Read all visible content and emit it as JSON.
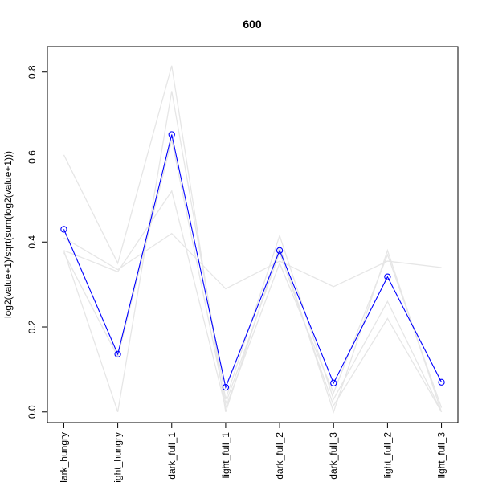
{
  "chart_data": {
    "type": "line",
    "title": "600",
    "xlabel": "",
    "ylabel": "log2(value+1)/sqrt(sum(log2(value+1)))",
    "categories": [
      "dark_hungry",
      "light_hungry",
      "dark_full_1",
      "light_full_1",
      "dark_full_2",
      "dark_full_3",
      "light_full_2",
      "light_full_3"
    ],
    "yticks": [
      "0.0",
      "0.2",
      "0.4",
      "0.6",
      "0.8"
    ],
    "ylim": [
      -0.025,
      0.86
    ],
    "grid": false,
    "highlight_color": "#0000ff",
    "background_color": "#e6e6e6",
    "highlight": {
      "values": [
        0.43,
        0.136,
        0.653,
        0.058,
        0.38,
        0.068,
        0.318,
        0.07
      ]
    },
    "background_series": [
      {
        "values": [
          0.605,
          0.35,
          0.815,
          0.0,
          0.39,
          0.0,
          0.38,
          0.0
        ]
      },
      {
        "values": [
          0.38,
          0.0,
          0.755,
          0.03,
          0.415,
          0.03,
          0.26,
          0.0
        ]
      },
      {
        "values": [
          0.38,
          0.33,
          0.52,
          0.01,
          0.35,
          0.045,
          0.37,
          0.01
        ]
      },
      {
        "values": [
          0.41,
          0.335,
          0.42,
          0.29,
          0.355,
          0.295,
          0.355,
          0.34
        ]
      },
      {
        "values": [
          0.375,
          0.13,
          0.64,
          0.02,
          0.375,
          0.015,
          0.22,
          0.0
        ]
      }
    ]
  }
}
